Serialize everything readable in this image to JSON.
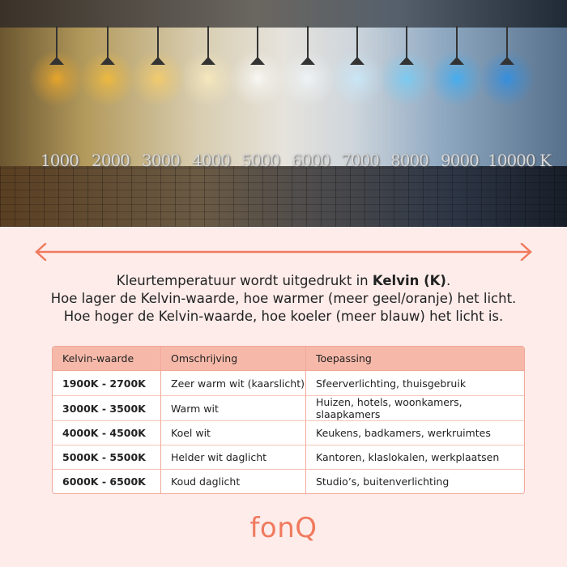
{
  "hero": {
    "scale_labels": [
      "1000",
      "2000",
      "3000",
      "4000",
      "5000",
      "6000",
      "7000",
      "8000",
      "9000",
      "10000 K"
    ],
    "lamp_colors": [
      "#ffb020",
      "#ffc030",
      "#ffd060",
      "#fff0c0",
      "#ffffff",
      "#f4faff",
      "#c8ecff",
      "#6ccfff",
      "#30b0ff",
      "#2090f0"
    ]
  },
  "arrow_color": "#f07a5e",
  "intro": {
    "line1_pre": "Kleurtemperatuur wordt uitgedrukt in ",
    "line1_bold": "Kelvin (K)",
    "line1_post": ".",
    "line2": "Hoe lager de Kelvin-waarde, hoe warmer (meer geel/oranje) het licht.",
    "line3": "Hoe hoger de Kelvin-waarde, hoe koeler (meer blauw) het licht is."
  },
  "table": {
    "headers": [
      "Kelvin-waarde",
      "Omschrijving",
      "Toepassing"
    ],
    "rows": [
      [
        "1900K - 2700K",
        "Zeer warm wit (kaarslicht)",
        "Sfeerverlichting, thuisgebruik"
      ],
      [
        "3000K - 3500K",
        "Warm wit",
        "Huizen, hotels, woonkamers, slaapkamers"
      ],
      [
        "4000K - 4500K",
        "Koel wit",
        "Keukens, badkamers, werkruimtes"
      ],
      [
        "5000K - 5500K",
        "Helder wit daglicht",
        "Kantoren, klaslokalen, werkplaatsen"
      ],
      [
        "6000K - 6500K",
        "Koud daglicht",
        "Studio’s, buitenverlichting"
      ]
    ]
  },
  "logo": "fonQ"
}
